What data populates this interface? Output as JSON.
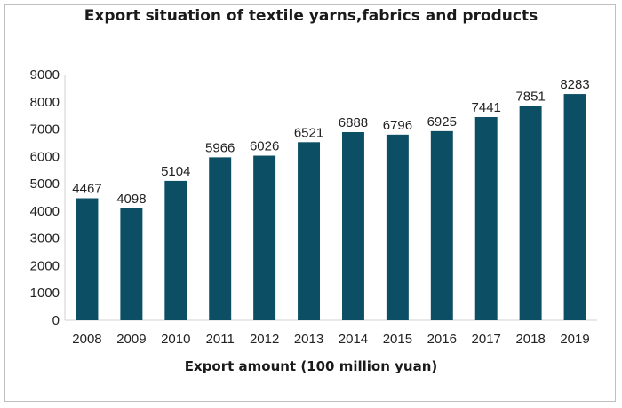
{
  "chart_data": {
    "type": "bar",
    "title": "Export situation of textile yarns,fabrics and products",
    "xlabel": "Export amount (100 million yuan)",
    "ylabel": "",
    "categories": [
      "2008",
      "2009",
      "2010",
      "2011",
      "2012",
      "2013",
      "2014",
      "2015",
      "2016",
      "2017",
      "2018",
      "2019"
    ],
    "values": [
      4467,
      4098,
      5104,
      5966,
      6026,
      6521,
      6888,
      6796,
      6925,
      7441,
      7851,
      8283
    ],
    "ylim": [
      0,
      9000
    ],
    "yticks": [
      0,
      1000,
      2000,
      3000,
      4000,
      5000,
      6000,
      7000,
      8000,
      9000
    ],
    "grid": false,
    "legend": "none",
    "bar_color": "#0c4f64"
  }
}
